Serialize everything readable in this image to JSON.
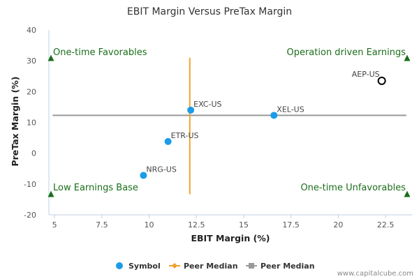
{
  "chart_data": {
    "type": "scatter",
    "title": "EBIT Margin Versus PreTax Margin",
    "xlabel": "EBIT Margin (%)",
    "ylabel": "PreTax Margin (%)",
    "xlim": [
      4.7,
      23.9
    ],
    "ylim": [
      -20,
      40
    ],
    "xticks": [
      "5",
      "7.5",
      "10",
      "12.5",
      "15",
      "17.5",
      "20",
      "22.5"
    ],
    "yticks": [
      "40",
      "30",
      "20",
      "10",
      "0",
      "-10",
      "-20"
    ],
    "grid": false,
    "points": [
      {
        "label": "EXC-US",
        "x": 12.2,
        "y": 14.0,
        "style": "filled"
      },
      {
        "label": "XEL-US",
        "x": 16.6,
        "y": 12.3,
        "style": "filled"
      },
      {
        "label": "ETR-US",
        "x": 11.0,
        "y": 3.8,
        "style": "filled"
      },
      {
        "label": "NRG-US",
        "x": 9.7,
        "y": -7.2,
        "style": "filled"
      },
      {
        "label": "AEP-US",
        "x": 22.3,
        "y": 23.5,
        "style": "hollow"
      }
    ],
    "peer_median_x": {
      "value": 12.15,
      "y_from": -13.3,
      "y_to": 31.0,
      "color": "#f0a22e"
    },
    "peer_median_y": {
      "value": 12.3,
      "x_from": 4.9,
      "x_to": 23.6,
      "color": "#999999"
    },
    "quadrants": [
      {
        "label": "One-time Favorables",
        "corner": "top-left"
      },
      {
        "label": "Operation driven Earnings",
        "corner": "top-right"
      },
      {
        "label": "Low Earnings Base",
        "corner": "bottom-left"
      },
      {
        "label": "One-time Unfavorables",
        "corner": "bottom-right"
      }
    ],
    "legend": {
      "placement": "bottom-center",
      "items": [
        {
          "label": "Symbol",
          "marker": "circle",
          "color": "#1b9ce8"
        },
        {
          "label": "Peer Median",
          "marker": "diamond",
          "color": "#f0a22e"
        },
        {
          "label": "Peer Median",
          "marker": "square",
          "color": "#999999"
        }
      ]
    },
    "credit": "www.capitalcube.com"
  },
  "colors": {
    "point": "#1b9ce8",
    "quadrant_text": "#1a6e1a",
    "quadrant_marker": "#1a6e1a",
    "axis": "#c0d0e0"
  }
}
